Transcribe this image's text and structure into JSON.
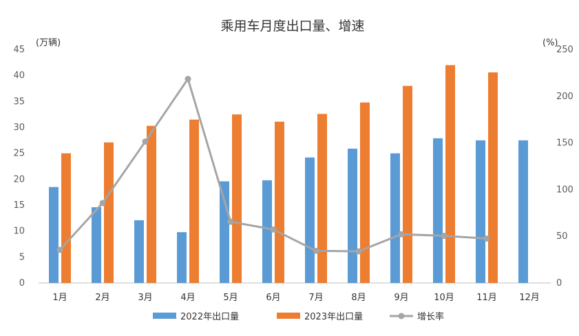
{
  "chart_data": {
    "type": "bar",
    "title": "乘用车月度出口量、增速",
    "ylabel_left": "(万辆)",
    "ylabel_right": "(%)",
    "categories": [
      "1月",
      "2月",
      "3月",
      "4月",
      "5月",
      "6月",
      "7月",
      "8月",
      "9月",
      "10月",
      "11月",
      "12月"
    ],
    "y_left": {
      "ylim": [
        0,
        45
      ],
      "ticks": [
        0,
        5,
        10,
        15,
        20,
        25,
        30,
        35,
        40,
        45
      ]
    },
    "y_right": {
      "ylim": [
        0,
        250
      ],
      "ticks": [
        0,
        50,
        100,
        150,
        200,
        250
      ]
    },
    "grid": false,
    "legend_position": "bottom",
    "series": [
      {
        "name": "2022年出口量",
        "kind": "bar",
        "axis": "left",
        "color": "#5B9BD5",
        "values": [
          18.5,
          14.6,
          12.1,
          9.8,
          19.6,
          19.8,
          24.2,
          25.9,
          25.0,
          27.9,
          27.5,
          27.5
        ]
      },
      {
        "name": "2023年出口量",
        "kind": "bar",
        "axis": "left",
        "color": "#ED7D31",
        "values": [
          25.0,
          27.1,
          30.3,
          31.5,
          32.5,
          31.1,
          32.6,
          34.8,
          38.0,
          42.0,
          40.6,
          null
        ]
      },
      {
        "name": "增长率",
        "kind": "line",
        "axis": "right",
        "color": "#A5A5A5",
        "values": [
          35.5,
          85.6,
          151.5,
          218.6,
          65.6,
          57.3,
          34.5,
          33.9,
          52.2,
          50.5,
          47.6,
          null
        ]
      }
    ]
  }
}
